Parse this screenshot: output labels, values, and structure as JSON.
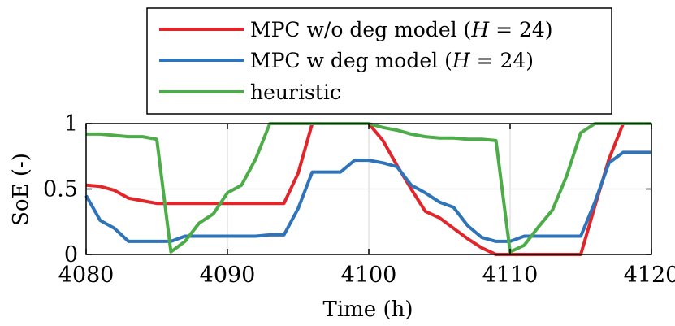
{
  "chart_data": {
    "type": "line",
    "title": "",
    "xlabel": "Time (h)",
    "ylabel": "SoE (-)",
    "xlim": [
      4080,
      4120
    ],
    "ylim": [
      0,
      1
    ],
    "xticks": [
      4080,
      4090,
      4100,
      4110,
      4120
    ],
    "xtick_labels": [
      "4080",
      "4090",
      "4100",
      "4110",
      "4120"
    ],
    "yticks": [
      0,
      0.5,
      1
    ],
    "ytick_labels": [
      "0",
      "0.5",
      "1"
    ],
    "grid": true,
    "legend_position": "top",
    "series": [
      {
        "name": "MPC w/o deg model (H = 24)",
        "label_parts": [
          "MPC w/o deg model (",
          "H",
          " = 24)"
        ],
        "color": "#e1262b",
        "x": [
          4080,
          4081,
          4082,
          4083,
          4084,
          4085,
          4086,
          4087,
          4088,
          4089,
          4090,
          4091,
          4092,
          4093,
          4094,
          4095,
          4096,
          4097,
          4098,
          4099,
          4100,
          4101,
          4102,
          4103,
          4104,
          4105,
          4106,
          4107,
          4108,
          4109,
          4110,
          4111,
          4112,
          4113,
          4114,
          4115,
          4116,
          4117,
          4118,
          4119,
          4120
        ],
        "y": [
          0.53,
          0.52,
          0.49,
          0.43,
          0.41,
          0.39,
          0.39,
          0.39,
          0.39,
          0.39,
          0.39,
          0.39,
          0.39,
          0.39,
          0.39,
          0.62,
          1.0,
          1.0,
          1.0,
          1.0,
          1.0,
          0.87,
          0.68,
          0.5,
          0.33,
          0.28,
          0.2,
          0.12,
          0.05,
          0.0,
          0.0,
          0.0,
          0.0,
          0.0,
          0.0,
          0.0,
          0.37,
          0.73,
          1.0,
          1.0,
          1.0
        ]
      },
      {
        "name": "MPC w deg model (H = 24)",
        "label_parts": [
          "MPC w deg model (",
          "H",
          " = 24)"
        ],
        "color": "#2f74b8",
        "x": [
          4080,
          4081,
          4082,
          4083,
          4084,
          4085,
          4086,
          4087,
          4088,
          4089,
          4090,
          4091,
          4092,
          4093,
          4094,
          4095,
          4096,
          4097,
          4098,
          4099,
          4100,
          4101,
          4102,
          4103,
          4104,
          4105,
          4106,
          4107,
          4108,
          4109,
          4110,
          4111,
          4112,
          4113,
          4114,
          4115,
          4116,
          4117,
          4118,
          4119,
          4120
        ],
        "y": [
          0.45,
          0.26,
          0.2,
          0.1,
          0.1,
          0.1,
          0.1,
          0.14,
          0.14,
          0.14,
          0.14,
          0.14,
          0.14,
          0.15,
          0.15,
          0.35,
          0.63,
          0.63,
          0.63,
          0.72,
          0.72,
          0.7,
          0.67,
          0.53,
          0.47,
          0.4,
          0.36,
          0.22,
          0.13,
          0.1,
          0.1,
          0.14,
          0.14,
          0.14,
          0.14,
          0.14,
          0.4,
          0.7,
          0.78,
          0.78,
          0.78
        ]
      },
      {
        "name": "heuristic",
        "label_parts": [
          "heuristic"
        ],
        "color": "#4cac48",
        "x": [
          4080,
          4081,
          4082,
          4083,
          4084,
          4085,
          4086,
          4087,
          4088,
          4089,
          4090,
          4091,
          4092,
          4093,
          4094,
          4095,
          4096,
          4097,
          4098,
          4099,
          4100,
          4101,
          4102,
          4103,
          4104,
          4105,
          4106,
          4107,
          4108,
          4109,
          4110,
          4111,
          4112,
          4113,
          4114,
          4115,
          4116,
          4117,
          4118,
          4119,
          4120
        ],
        "y": [
          0.92,
          0.92,
          0.91,
          0.9,
          0.9,
          0.88,
          0.02,
          0.1,
          0.24,
          0.31,
          0.47,
          0.53,
          0.73,
          1.0,
          1.0,
          1.0,
          1.0,
          1.0,
          1.0,
          1.0,
          1.0,
          0.97,
          0.95,
          0.92,
          0.9,
          0.89,
          0.89,
          0.88,
          0.88,
          0.87,
          0.02,
          0.07,
          0.21,
          0.34,
          0.6,
          0.93,
          1.0,
          1.0,
          1.0,
          1.0,
          1.0
        ]
      }
    ]
  }
}
